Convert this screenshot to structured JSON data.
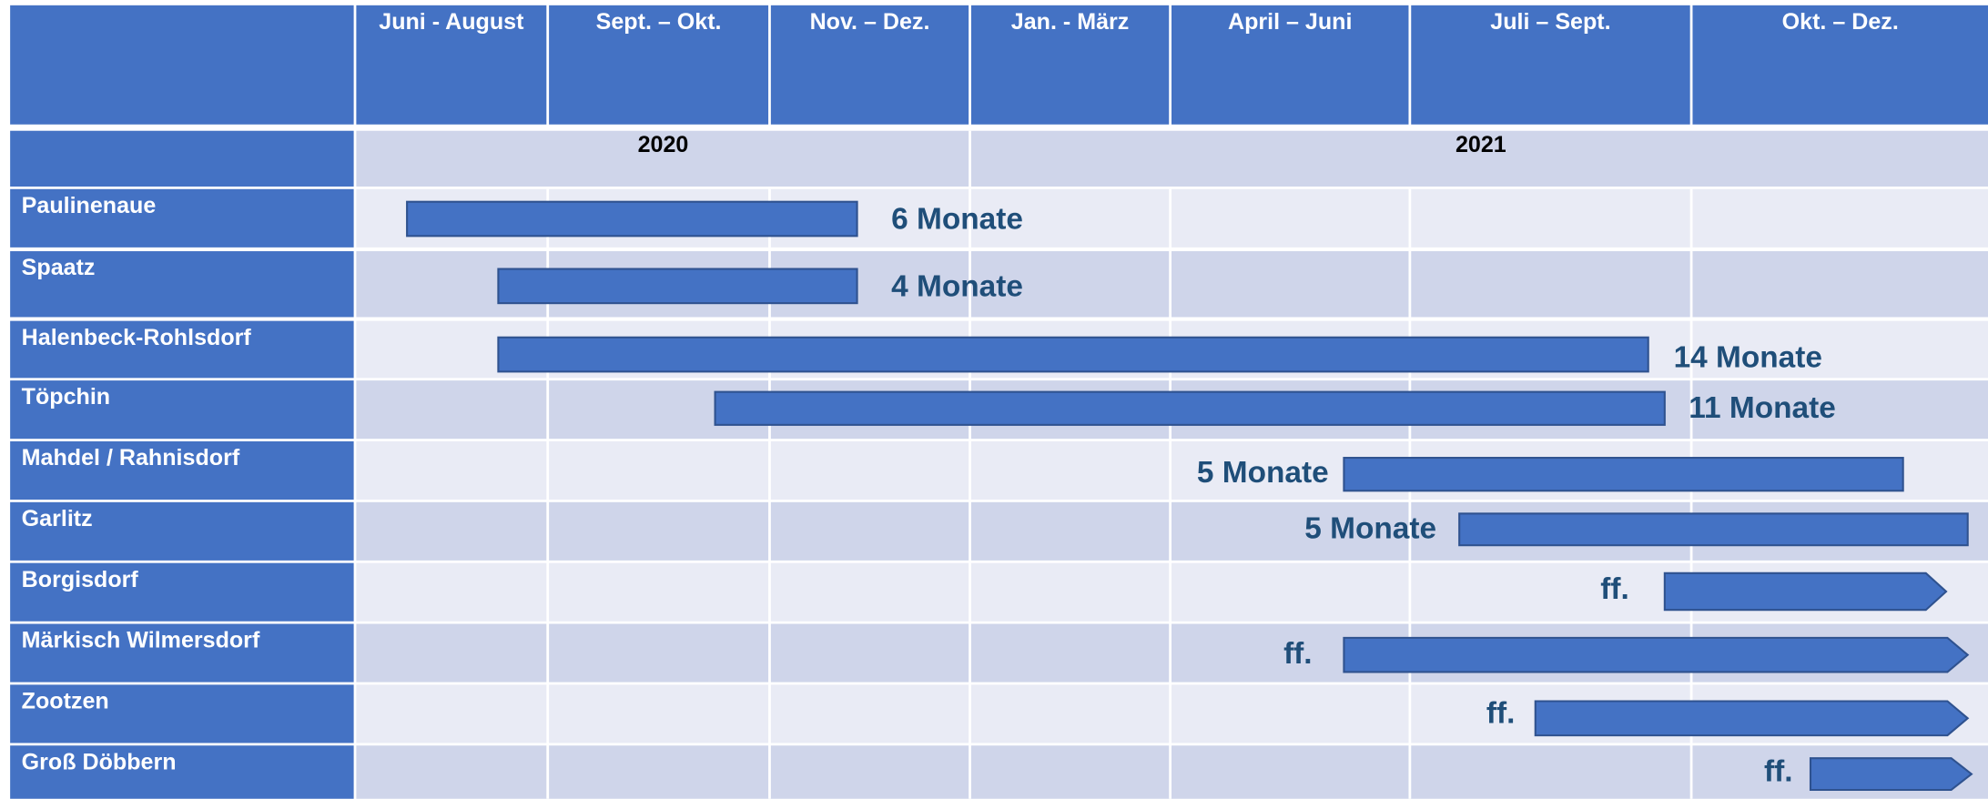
{
  "header": {
    "columns": [
      "Juni  - August",
      "Sept. – Okt.",
      "Nov. – Dez.",
      "Jan. - März",
      "April – Juni",
      "Juli – Sept.",
      "Okt. – Dez."
    ],
    "years": [
      "2020",
      "2021"
    ]
  },
  "rows": [
    {
      "label": "Paulinenaue",
      "duration": "6 Monate"
    },
    {
      "label": "Spaatz",
      "duration": "4 Monate"
    },
    {
      "label": "Halenbeck-Rohlsdorf",
      "duration": "14 Monate"
    },
    {
      "label": "Töpchin",
      "duration": "11 Monate"
    },
    {
      "label": "Mahdel / Rahnisdorf",
      "duration": "5 Monate"
    },
    {
      "label": "Garlitz",
      "duration": "5 Monate"
    },
    {
      "label": "Borgisdorf",
      "duration": "ff."
    },
    {
      "label": "Märkisch Wilmersdorf",
      "duration": "ff."
    },
    {
      "label": "Zootzen",
      "duration": "ff."
    },
    {
      "label": "Groß Döbbern",
      "duration": "ff."
    }
  ]
}
